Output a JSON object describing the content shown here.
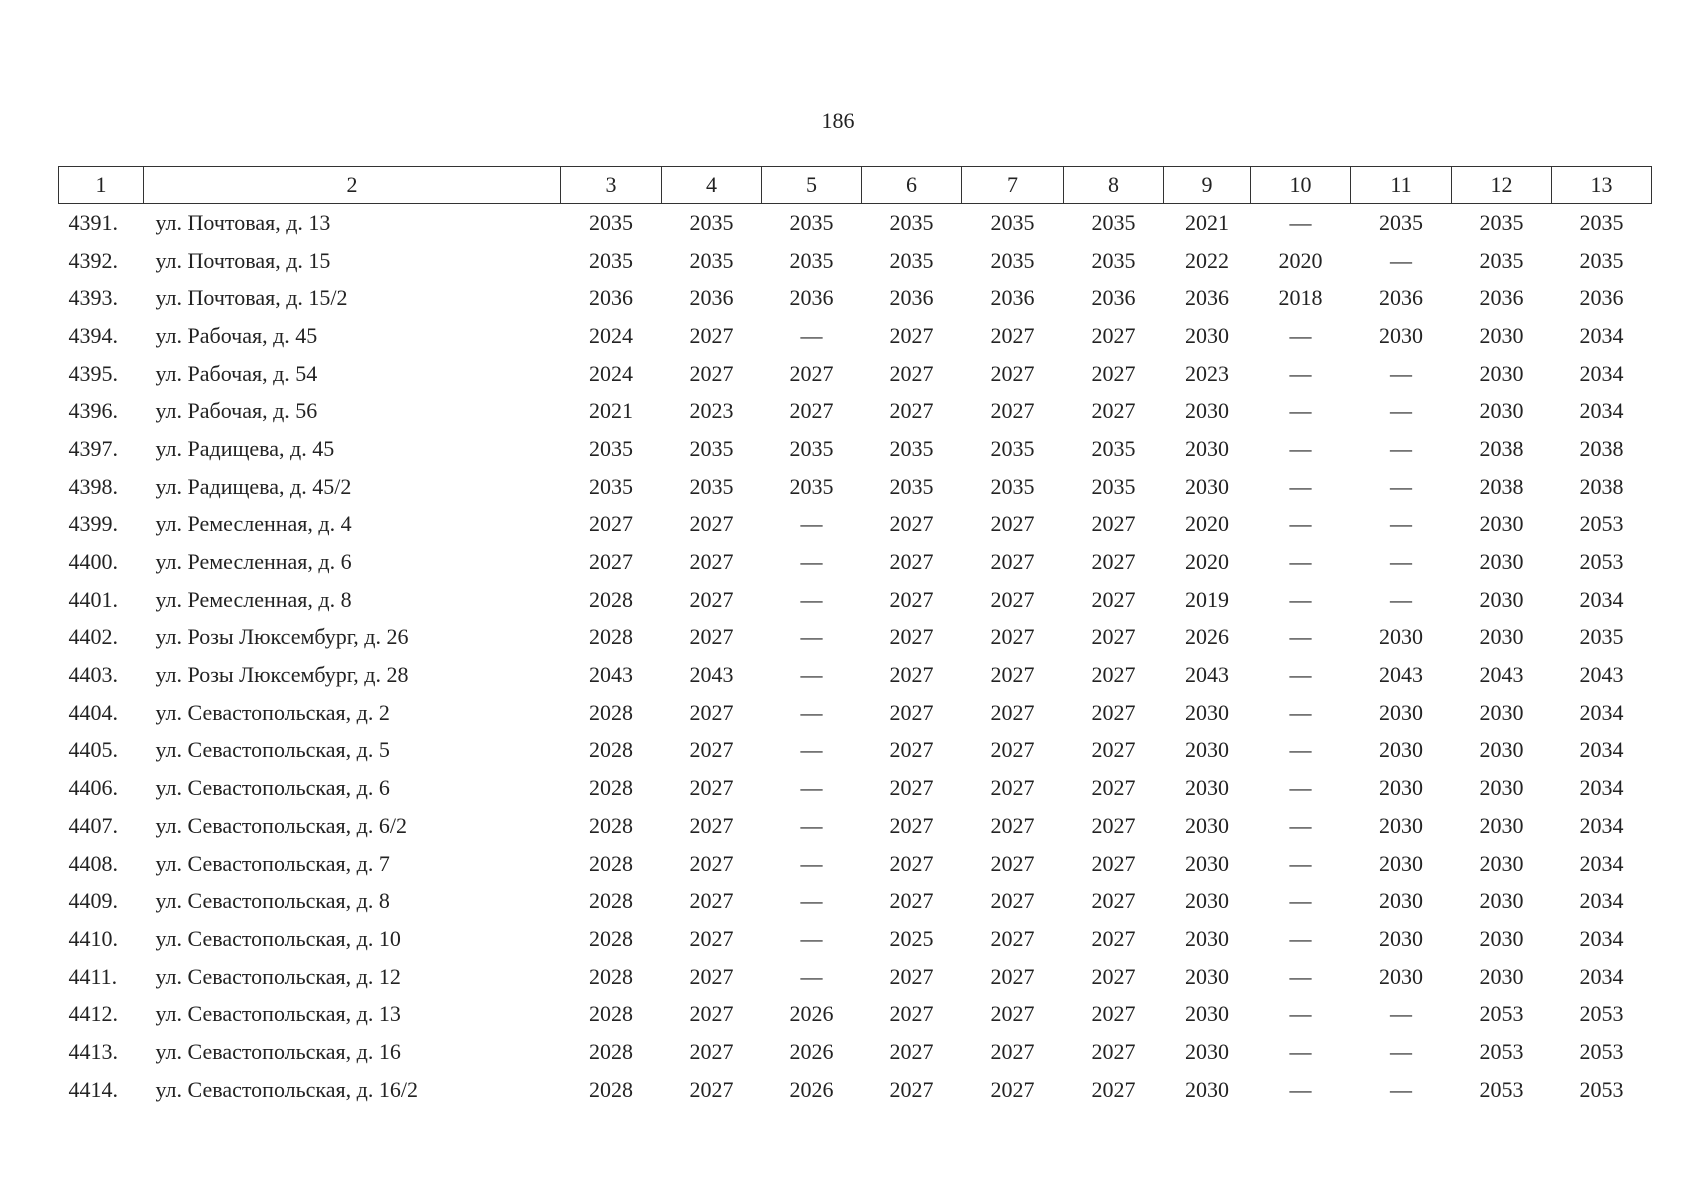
{
  "header": {
    "page_number": "186"
  },
  "table": {
    "columns": [
      "1",
      "2",
      "3",
      "4",
      "5",
      "6",
      "7",
      "8",
      "9",
      "10",
      "11",
      "12",
      "13"
    ],
    "rows": [
      [
        "4391.",
        "ул. Почтовая, д. 13",
        "2035",
        "2035",
        "2035",
        "2035",
        "2035",
        "2035",
        "2021",
        "—",
        "2035",
        "2035",
        "2035"
      ],
      [
        "4392.",
        "ул. Почтовая, д. 15",
        "2035",
        "2035",
        "2035",
        "2035",
        "2035",
        "2035",
        "2022",
        "2020",
        "—",
        "2035",
        "2035"
      ],
      [
        "4393.",
        "ул. Почтовая, д. 15/2",
        "2036",
        "2036",
        "2036",
        "2036",
        "2036",
        "2036",
        "2036",
        "2018",
        "2036",
        "2036",
        "2036"
      ],
      [
        "4394.",
        "ул. Рабочая, д. 45",
        "2024",
        "2027",
        "—",
        "2027",
        "2027",
        "2027",
        "2030",
        "—",
        "2030",
        "2030",
        "2034"
      ],
      [
        "4395.",
        "ул. Рабочая, д. 54",
        "2024",
        "2027",
        "2027",
        "2027",
        "2027",
        "2027",
        "2023",
        "—",
        "—",
        "2030",
        "2034"
      ],
      [
        "4396.",
        "ул. Рабочая, д. 56",
        "2021",
        "2023",
        "2027",
        "2027",
        "2027",
        "2027",
        "2030",
        "—",
        "—",
        "2030",
        "2034"
      ],
      [
        "4397.",
        "ул. Радищева, д. 45",
        "2035",
        "2035",
        "2035",
        "2035",
        "2035",
        "2035",
        "2030",
        "—",
        "—",
        "2038",
        "2038"
      ],
      [
        "4398.",
        "ул. Радищева, д. 45/2",
        "2035",
        "2035",
        "2035",
        "2035",
        "2035",
        "2035",
        "2030",
        "—",
        "—",
        "2038",
        "2038"
      ],
      [
        "4399.",
        "ул. Ремесленная, д. 4",
        "2027",
        "2027",
        "—",
        "2027",
        "2027",
        "2027",
        "2020",
        "—",
        "—",
        "2030",
        "2053"
      ],
      [
        "4400.",
        "ул. Ремесленная, д. 6",
        "2027",
        "2027",
        "—",
        "2027",
        "2027",
        "2027",
        "2020",
        "—",
        "—",
        "2030",
        "2053"
      ],
      [
        "4401.",
        "ул. Ремесленная, д. 8",
        "2028",
        "2027",
        "—",
        "2027",
        "2027",
        "2027",
        "2019",
        "—",
        "—",
        "2030",
        "2034"
      ],
      [
        "4402.",
        "ул. Розы Люксембург, д. 26",
        "2028",
        "2027",
        "—",
        "2027",
        "2027",
        "2027",
        "2026",
        "—",
        "2030",
        "2030",
        "2035"
      ],
      [
        "4403.",
        "ул. Розы Люксембург, д. 28",
        "2043",
        "2043",
        "—",
        "2027",
        "2027",
        "2027",
        "2043",
        "—",
        "2043",
        "2043",
        "2043"
      ],
      [
        "4404.",
        "ул. Севастопольская, д. 2",
        "2028",
        "2027",
        "—",
        "2027",
        "2027",
        "2027",
        "2030",
        "—",
        "2030",
        "2030",
        "2034"
      ],
      [
        "4405.",
        "ул. Севастопольская, д. 5",
        "2028",
        "2027",
        "—",
        "2027",
        "2027",
        "2027",
        "2030",
        "—",
        "2030",
        "2030",
        "2034"
      ],
      [
        "4406.",
        "ул. Севастопольская, д. 6",
        "2028",
        "2027",
        "—",
        "2027",
        "2027",
        "2027",
        "2030",
        "—",
        "2030",
        "2030",
        "2034"
      ],
      [
        "4407.",
        "ул. Севастопольская, д. 6/2",
        "2028",
        "2027",
        "—",
        "2027",
        "2027",
        "2027",
        "2030",
        "—",
        "2030",
        "2030",
        "2034"
      ],
      [
        "4408.",
        "ул. Севастопольская, д. 7",
        "2028",
        "2027",
        "—",
        "2027",
        "2027",
        "2027",
        "2030",
        "—",
        "2030",
        "2030",
        "2034"
      ],
      [
        "4409.",
        "ул. Севастопольская, д. 8",
        "2028",
        "2027",
        "—",
        "2027",
        "2027",
        "2027",
        "2030",
        "—",
        "2030",
        "2030",
        "2034"
      ],
      [
        "4410.",
        "ул. Севастопольская, д. 10",
        "2028",
        "2027",
        "—",
        "2025",
        "2027",
        "2027",
        "2030",
        "—",
        "2030",
        "2030",
        "2034"
      ],
      [
        "4411.",
        "ул. Севастопольская, д. 12",
        "2028",
        "2027",
        "—",
        "2027",
        "2027",
        "2027",
        "2030",
        "—",
        "2030",
        "2030",
        "2034"
      ],
      [
        "4412.",
        "ул. Севастопольская, д. 13",
        "2028",
        "2027",
        "2026",
        "2027",
        "2027",
        "2027",
        "2030",
        "—",
        "—",
        "2053",
        "2053"
      ],
      [
        "4413.",
        "ул. Севастопольская, д. 16",
        "2028",
        "2027",
        "2026",
        "2027",
        "2027",
        "2027",
        "2030",
        "—",
        "—",
        "2053",
        "2053"
      ],
      [
        "4414.",
        "ул. Севастопольская, д. 16/2",
        "2028",
        "2027",
        "2026",
        "2027",
        "2027",
        "2027",
        "2030",
        "—",
        "—",
        "2053",
        "2053"
      ]
    ]
  }
}
